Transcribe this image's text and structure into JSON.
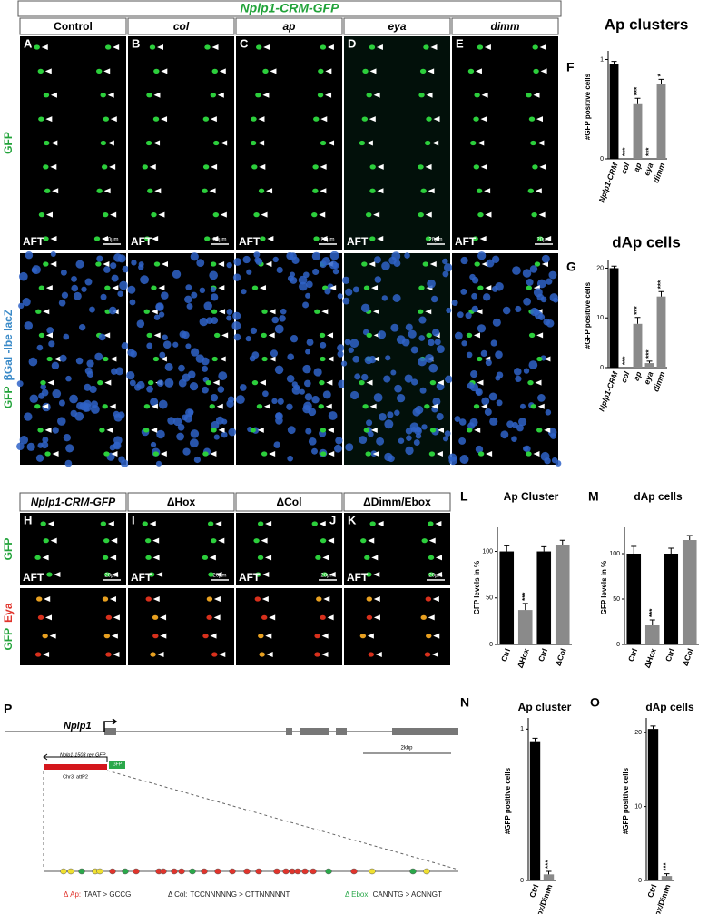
{
  "figure": {
    "top": {
      "title": "Nplp1-CRM-GFP",
      "columns": [
        "Control",
        "col",
        "ap",
        "eya",
        "dimm"
      ],
      "letters": [
        "A",
        "B",
        "C",
        "D",
        "E"
      ],
      "row_labels": [
        [
          "GFP"
        ],
        [
          "GFP",
          "βGal -lbe lacZ"
        ]
      ],
      "stage": "AFT",
      "scale": "20μm"
    },
    "bottom": {
      "columns": [
        "Nplp1-CRM-GFP",
        "ΔHox",
        "ΔCol",
        "ΔDimm/Ebox"
      ],
      "letters": [
        "H",
        "I",
        "J",
        "K"
      ],
      "row_labels": [
        [
          "GFP"
        ],
        [
          "GFP",
          "Eya"
        ]
      ],
      "stage": "AFT",
      "scale": "20μm"
    },
    "diagram": {
      "letter": "P",
      "gene": "Nplp1",
      "construct": "Nplp1-1503 rev GFP",
      "reporter": "GFP",
      "site": "Chr3: attP2",
      "scale": "2kbp",
      "mutations": [
        {
          "name": "Δ Ap:",
          "change": "TAAT > GCCG",
          "color": "#e0342c"
        },
        {
          "name": "Δ Col:",
          "change": "TCCNNNNNG > CTTNNNNNT",
          "color": "#222222"
        },
        {
          "name": "Δ Ebox:",
          "change": "CANNTG > ACNNGT",
          "color": "#2aa84a"
        }
      ]
    }
  },
  "chart_data": [
    {
      "type": "bar",
      "letter": "F",
      "title": "Ap clusters",
      "ylabel": "#GFP positive cells",
      "italic_categories": true,
      "categories": [
        "Nplp1-CRM",
        "col",
        "ap",
        "eya",
        "dimm"
      ],
      "values": [
        0.95,
        0,
        0.55,
        0,
        0.75
      ],
      "errors": [
        0.03,
        0,
        0.06,
        0,
        0.05
      ],
      "colors": [
        "#000000",
        "#8a8a8a",
        "#8a8a8a",
        "#8a8a8a",
        "#8a8a8a"
      ],
      "significance": [
        null,
        "***",
        "***",
        "***",
        "*"
      ],
      "ylim": [
        0,
        1.05
      ],
      "yticks": [
        0,
        1
      ]
    },
    {
      "type": "bar",
      "letter": "G",
      "title": "dAp cells",
      "ylabel": "#GFP positive cells",
      "italic_categories": true,
      "categories": [
        "Nplp1-CRM",
        "col",
        "ap",
        "eya",
        "dimm"
      ],
      "values": [
        20,
        0,
        8.8,
        0.9,
        14.3
      ],
      "errors": [
        0.4,
        0,
        1.3,
        0.4,
        1.0
      ],
      "colors": [
        "#000000",
        "#8a8a8a",
        "#8a8a8a",
        "#8a8a8a",
        "#8a8a8a"
      ],
      "significance": [
        null,
        "***",
        "***",
        "***",
        "***"
      ],
      "ylim": [
        0,
        21
      ],
      "yticks": [
        0,
        10,
        20
      ]
    },
    {
      "type": "bar",
      "letter": "L",
      "title": "Ap Cluster",
      "ylabel": "GFP levels in %",
      "italic_categories": false,
      "categories": [
        "Ctrl",
        "ΔHox",
        "Ctrl",
        "ΔCol"
      ],
      "values": [
        100,
        37,
        100,
        107
      ],
      "errors": [
        6,
        7,
        5,
        5
      ],
      "colors": [
        "#000000",
        "#8a8a8a",
        "#000000",
        "#8a8a8a"
      ],
      "significance": [
        null,
        "***",
        null,
        null
      ],
      "ylim": [
        0,
        122
      ],
      "yticks": [
        0,
        50,
        100
      ]
    },
    {
      "type": "bar",
      "letter": "M",
      "title": "dAp cells",
      "ylabel": "GFP levels in %",
      "italic_categories": false,
      "categories": [
        "Ctrl",
        "ΔHox",
        "Ctrl",
        "ΔCol"
      ],
      "values": [
        100,
        21,
        100,
        115
      ],
      "errors": [
        8,
        6,
        6,
        5
      ],
      "colors": [
        "#000000",
        "#8a8a8a",
        "#000000",
        "#8a8a8a"
      ],
      "significance": [
        null,
        "***",
        null,
        null
      ],
      "ylim": [
        0,
        125
      ],
      "yticks": [
        0,
        50,
        100
      ]
    },
    {
      "type": "bar",
      "letter": "N",
      "title": "Ap cluster",
      "ylabel": "#GFP positive cells",
      "italic_categories": false,
      "categories": [
        "Ctrl",
        "ΔEbox/Dimm"
      ],
      "values": [
        0.92,
        0.04
      ],
      "errors": [
        0.02,
        0.02
      ],
      "colors": [
        "#000000",
        "#8a8a8a"
      ],
      "significance": [
        null,
        "***"
      ],
      "ylim": [
        0,
        1.05
      ],
      "yticks": [
        0,
        1
      ]
    },
    {
      "type": "bar",
      "letter": "O",
      "title": "dAp cells",
      "ylabel": "#GFP positive cells",
      "italic_categories": false,
      "categories": [
        "Ctrl",
        "ΔEbox/Dimm"
      ],
      "values": [
        20.5,
        0.6
      ],
      "errors": [
        0.4,
        0.3
      ],
      "colors": [
        "#000000",
        "#8a8a8a"
      ],
      "significance": [
        null,
        "***"
      ],
      "ylim": [
        0,
        21.5
      ],
      "yticks": [
        0,
        10,
        20
      ]
    }
  ]
}
